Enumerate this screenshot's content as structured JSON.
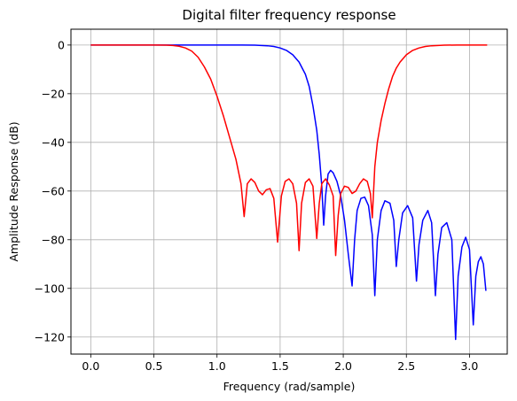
{
  "chart_data": {
    "type": "line",
    "title": "Digital filter frequency response",
    "xlabel": "Frequency (rad/sample)",
    "ylabel": "Amplitude Response (dB)",
    "xlim": [
      -0.157,
      3.299
    ],
    "ylim": [
      -127,
      6.5
    ],
    "xticks": [
      0.0,
      0.5,
      1.0,
      1.5,
      2.0,
      2.5,
      3.0
    ],
    "xtick_labels": [
      "0.0",
      "0.5",
      "1.0",
      "1.5",
      "2.0",
      "2.5",
      "3.0"
    ],
    "yticks": [
      0,
      -20,
      -40,
      -60,
      -80,
      -100,
      -120
    ],
    "ytick_labels": [
      "0",
      "−20",
      "−40",
      "−60",
      "−80",
      "−100",
      "−120"
    ],
    "grid": true,
    "series": [
      {
        "color": "#0000ff",
        "points": [
          [
            0.0,
            0
          ],
          [
            0.5,
            0
          ],
          [
            1.0,
            0
          ],
          [
            1.2,
            0
          ],
          [
            1.3,
            -0.05
          ],
          [
            1.4,
            -0.3
          ],
          [
            1.45,
            -0.6
          ],
          [
            1.5,
            -1.2
          ],
          [
            1.55,
            -2.2
          ],
          [
            1.6,
            -4.0
          ],
          [
            1.65,
            -7.0
          ],
          [
            1.7,
            -12
          ],
          [
            1.73,
            -17
          ],
          [
            1.76,
            -25
          ],
          [
            1.79,
            -35
          ],
          [
            1.81,
            -45
          ],
          [
            1.83,
            -58
          ],
          [
            1.845,
            -74
          ],
          [
            1.86,
            -62
          ],
          [
            1.88,
            -53
          ],
          [
            1.9,
            -51.5
          ],
          [
            1.92,
            -52.5
          ],
          [
            1.95,
            -56
          ],
          [
            1.98,
            -62
          ],
          [
            2.01,
            -72
          ],
          [
            2.04,
            -86
          ],
          [
            2.07,
            -99
          ],
          [
            2.09,
            -80
          ],
          [
            2.11,
            -68
          ],
          [
            2.14,
            -63
          ],
          [
            2.17,
            -62.5
          ],
          [
            2.2,
            -66
          ],
          [
            2.23,
            -78
          ],
          [
            2.25,
            -103
          ],
          [
            2.27,
            -80
          ],
          [
            2.3,
            -68
          ],
          [
            2.33,
            -64
          ],
          [
            2.37,
            -65
          ],
          [
            2.4,
            -72
          ],
          [
            2.42,
            -91
          ],
          [
            2.44,
            -80
          ],
          [
            2.47,
            -69
          ],
          [
            2.51,
            -66
          ],
          [
            2.55,
            -71
          ],
          [
            2.58,
            -97
          ],
          [
            2.6,
            -82
          ],
          [
            2.63,
            -72
          ],
          [
            2.67,
            -68
          ],
          [
            2.7,
            -73
          ],
          [
            2.73,
            -103
          ],
          [
            2.75,
            -86
          ],
          [
            2.78,
            -75
          ],
          [
            2.82,
            -73
          ],
          [
            2.86,
            -80
          ],
          [
            2.89,
            -121
          ],
          [
            2.91,
            -95
          ],
          [
            2.94,
            -83
          ],
          [
            2.97,
            -79
          ],
          [
            3.0,
            -84
          ],
          [
            3.03,
            -115
          ],
          [
            3.05,
            -95
          ],
          [
            3.07,
            -89
          ],
          [
            3.09,
            -87
          ],
          [
            3.11,
            -90
          ],
          [
            3.13,
            -101
          ]
        ]
      },
      {
        "color": "#ff0000",
        "points": [
          [
            0.0,
            0
          ],
          [
            0.5,
            0
          ],
          [
            0.6,
            -0.05
          ],
          [
            0.65,
            -0.2
          ],
          [
            0.7,
            -0.5
          ],
          [
            0.75,
            -1.2
          ],
          [
            0.8,
            -2.5
          ],
          [
            0.85,
            -5
          ],
          [
            0.9,
            -9
          ],
          [
            0.95,
            -14
          ],
          [
            1.0,
            -21
          ],
          [
            1.05,
            -29
          ],
          [
            1.1,
            -38
          ],
          [
            1.15,
            -47
          ],
          [
            1.19,
            -57
          ],
          [
            1.215,
            -70.5
          ],
          [
            1.24,
            -57
          ],
          [
            1.27,
            -55
          ],
          [
            1.3,
            -56.5
          ],
          [
            1.33,
            -60
          ],
          [
            1.36,
            -61.5
          ],
          [
            1.39,
            -59.5
          ],
          [
            1.42,
            -59
          ],
          [
            1.45,
            -63
          ],
          [
            1.48,
            -81
          ],
          [
            1.51,
            -62
          ],
          [
            1.54,
            -56
          ],
          [
            1.57,
            -55
          ],
          [
            1.6,
            -57
          ],
          [
            1.63,
            -65
          ],
          [
            1.65,
            -84.5
          ],
          [
            1.67,
            -65
          ],
          [
            1.7,
            -56.5
          ],
          [
            1.73,
            -55
          ],
          [
            1.76,
            -58
          ],
          [
            1.79,
            -79.5
          ],
          [
            1.81,
            -65
          ],
          [
            1.83,
            -57
          ],
          [
            1.86,
            -55
          ],
          [
            1.89,
            -57.5
          ],
          [
            1.92,
            -62
          ],
          [
            1.94,
            -86.5
          ],
          [
            1.96,
            -70
          ],
          [
            1.98,
            -61
          ],
          [
            2.01,
            -58
          ],
          [
            2.04,
            -58.5
          ],
          [
            2.07,
            -61
          ],
          [
            2.1,
            -60
          ],
          [
            2.13,
            -57
          ],
          [
            2.16,
            -55
          ],
          [
            2.19,
            -56
          ],
          [
            2.215,
            -61
          ],
          [
            2.23,
            -71
          ],
          [
            2.25,
            -50
          ],
          [
            2.27,
            -40
          ],
          [
            2.3,
            -31
          ],
          [
            2.33,
            -24
          ],
          [
            2.36,
            -18
          ],
          [
            2.39,
            -13
          ],
          [
            2.42,
            -9.5
          ],
          [
            2.45,
            -7
          ],
          [
            2.5,
            -4
          ],
          [
            2.55,
            -2.2
          ],
          [
            2.6,
            -1.2
          ],
          [
            2.65,
            -0.6
          ],
          [
            2.7,
            -0.3
          ],
          [
            2.8,
            -0.05
          ],
          [
            2.9,
            0
          ],
          [
            3.14,
            0
          ]
        ]
      }
    ]
  }
}
